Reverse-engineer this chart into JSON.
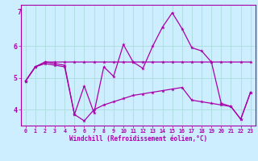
{
  "xlabel": "Windchill (Refroidissement éolien,°C)",
  "background_color": "#cceeff",
  "grid_color": "#aadddd",
  "line_color": "#aa00aa",
  "xlim": [
    -0.5,
    23.5
  ],
  "ylim": [
    3.5,
    7.3
  ],
  "yticks": [
    4,
    5,
    6
  ],
  "yticklabels": [
    "4",
    "5",
    "6"
  ],
  "xticks": [
    0,
    1,
    2,
    3,
    4,
    5,
    6,
    7,
    8,
    9,
    10,
    11,
    12,
    13,
    14,
    15,
    16,
    17,
    18,
    19,
    20,
    21,
    22,
    23
  ],
  "series1": [
    4.9,
    5.35,
    5.5,
    5.5,
    5.5,
    5.5,
    5.5,
    5.5,
    5.5,
    5.5,
    5.5,
    5.5,
    5.5,
    5.5,
    5.5,
    5.5,
    5.5,
    5.5,
    5.5,
    5.5,
    5.5,
    5.5,
    5.5,
    5.5
  ],
  "series2": [
    4.9,
    5.35,
    5.5,
    5.45,
    5.4,
    3.85,
    4.75,
    3.9,
    5.35,
    5.05,
    6.05,
    5.5,
    5.3,
    6.0,
    6.6,
    7.05,
    6.55,
    5.95,
    5.85,
    5.5,
    4.2,
    4.1,
    3.7,
    4.55
  ],
  "series3": [
    4.9,
    5.35,
    5.45,
    5.4,
    5.35,
    3.85,
    3.65,
    4.0,
    4.15,
    4.25,
    4.35,
    4.45,
    4.5,
    4.55,
    4.6,
    4.65,
    4.7,
    4.3,
    4.25,
    4.2,
    4.15,
    4.1,
    3.7,
    4.55
  ]
}
